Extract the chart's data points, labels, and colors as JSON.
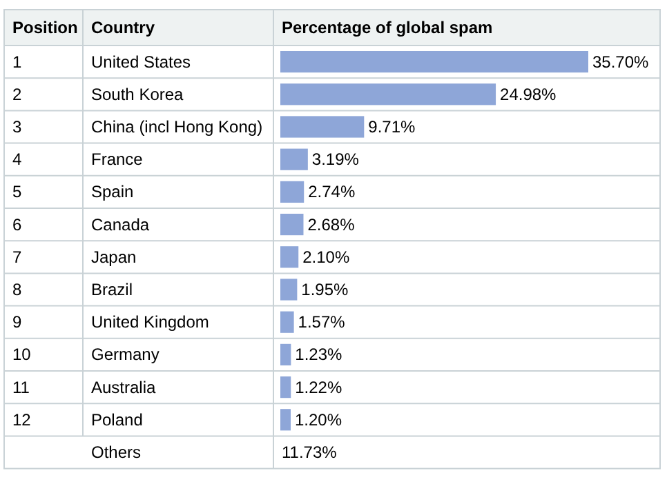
{
  "chart_data": {
    "type": "bar",
    "orientation": "horizontal",
    "xlabel": "Percentage of global spam",
    "categories": [
      "United States",
      "South Korea",
      "China (incl Hong Kong)",
      "France",
      "Spain",
      "Canada",
      "Japan",
      "Brazil",
      "United Kingdom",
      "Germany",
      "Australia",
      "Poland",
      "Others"
    ],
    "values": [
      35.7,
      24.98,
      9.71,
      3.19,
      2.74,
      2.68,
      2.1,
      1.95,
      1.57,
      1.23,
      1.22,
      1.2,
      null
    ],
    "value_labels": [
      "35.70%",
      "24.98%",
      "9.71%",
      "3.19%",
      "2.74%",
      "2.68%",
      "2.10%",
      "1.95%",
      "1.57%",
      "1.23%",
      "1.22%",
      "1.20%",
      "11.73%"
    ],
    "color": "#8ea6d8",
    "annotations": [
      "Position",
      "Country",
      "1",
      "2",
      "3",
      "4",
      "5",
      "6",
      "7",
      "8",
      "9",
      "10",
      "11",
      "12"
    ]
  }
}
